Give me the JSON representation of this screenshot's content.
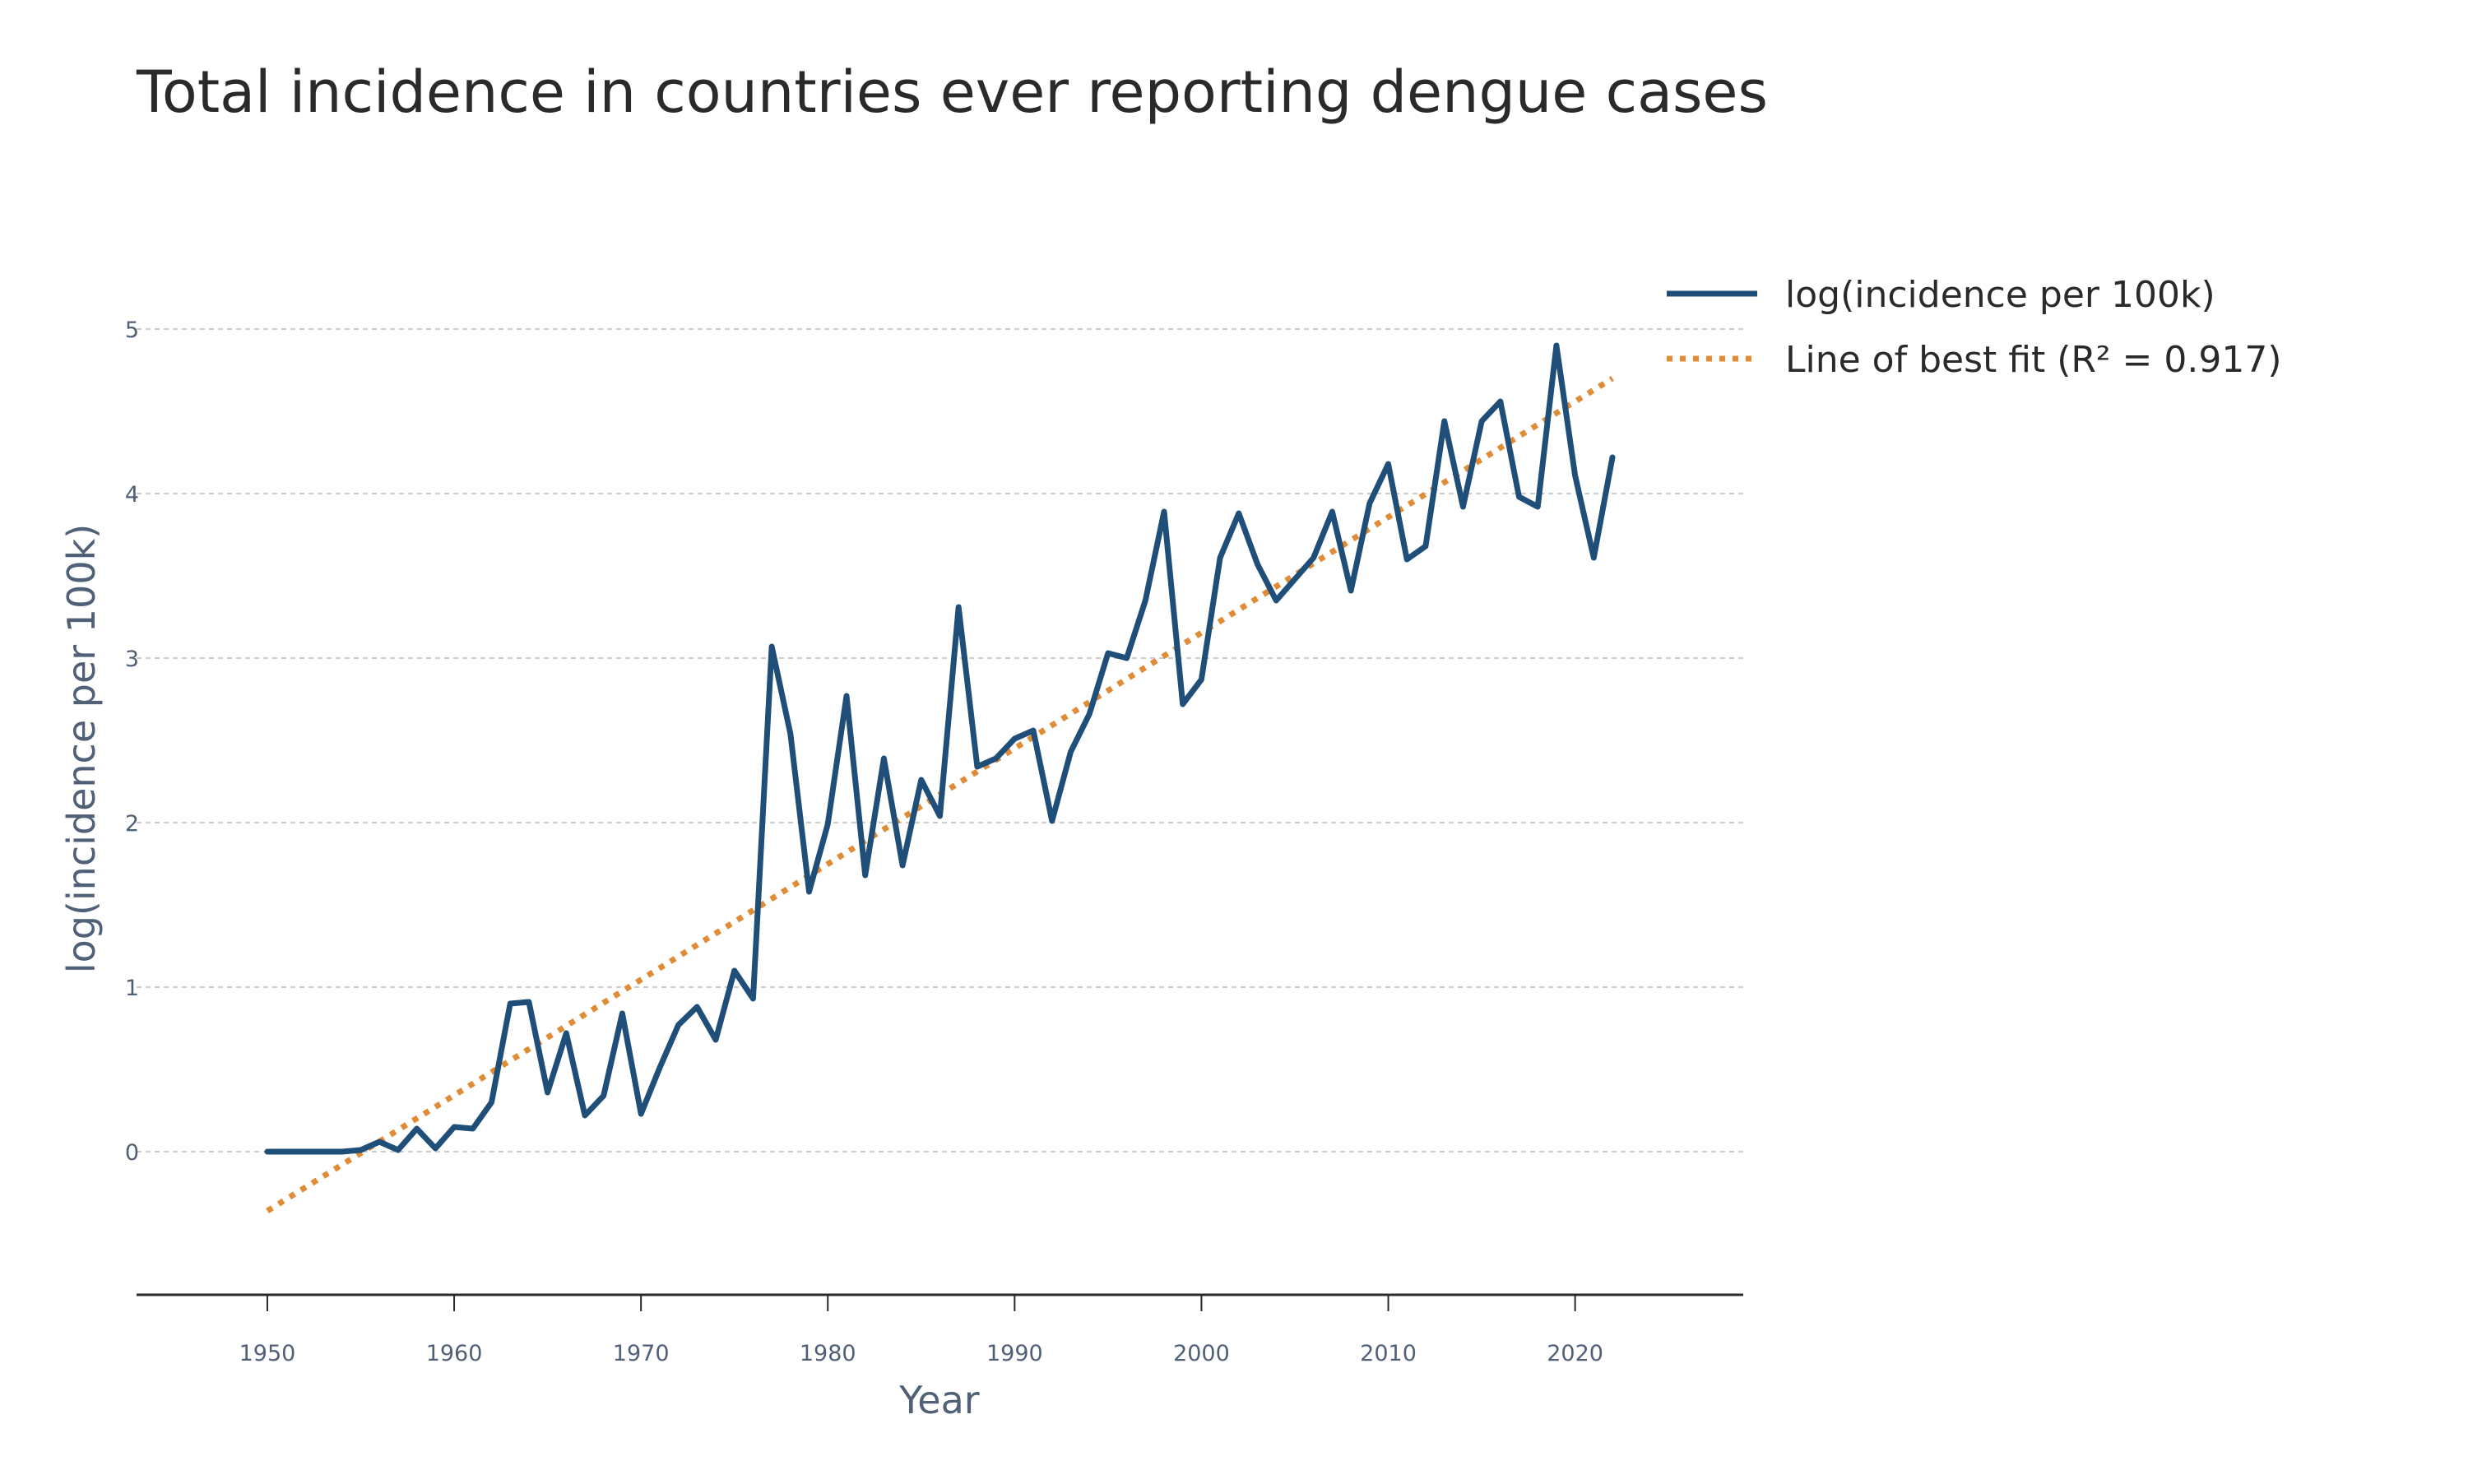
{
  "chart_data": {
    "type": "line",
    "title": "Total incidence in countries ever reporting dengue cases",
    "xlabel": "Year",
    "ylabel": "log(incidence per 100k)",
    "xlim": [
      1943,
      2029
    ],
    "ylim": [
      -0.87,
      5.5
    ],
    "x_ticks": [
      1950,
      1960,
      1970,
      1980,
      1990,
      2000,
      2010,
      2020
    ],
    "y_ticks": [
      0,
      1,
      2,
      3,
      4,
      5
    ],
    "grid": true,
    "legend_position": "right",
    "colors": {
      "series_line": "#1f4e79",
      "fit_line": "#e08b35",
      "grid": "#cccccc",
      "axis": "#2a2a2a"
    },
    "series": [
      {
        "name": "log(incidence per 100k)",
        "style": "solid",
        "x": [
          1950,
          1951,
          1952,
          1953,
          1954,
          1955,
          1956,
          1957,
          1958,
          1959,
          1960,
          1961,
          1962,
          1963,
          1964,
          1965,
          1966,
          1967,
          1968,
          1969,
          1970,
          1971,
          1972,
          1973,
          1974,
          1975,
          1976,
          1977,
          1978,
          1979,
          1980,
          1981,
          1982,
          1983,
          1984,
          1985,
          1986,
          1987,
          1988,
          1989,
          1990,
          1991,
          1992,
          1993,
          1994,
          1995,
          1996,
          1997,
          1998,
          1999,
          2000,
          2001,
          2002,
          2003,
          2004,
          2005,
          2006,
          2007,
          2008,
          2009,
          2010,
          2011,
          2012,
          2013,
          2014,
          2015,
          2016,
          2017,
          2018,
          2019,
          2020,
          2021,
          2022
        ],
        "y": [
          0,
          0,
          0,
          0,
          0,
          0.01,
          0.06,
          0.01,
          0.14,
          0.02,
          0.15,
          0.14,
          0.3,
          0.9,
          0.91,
          0.36,
          0.72,
          0.22,
          0.34,
          0.84,
          0.23,
          0.51,
          0.77,
          0.88,
          0.68,
          1.1,
          0.93,
          3.07,
          2.54,
          1.58,
          1.99,
          2.77,
          1.68,
          2.39,
          1.74,
          2.26,
          2.04,
          3.31,
          2.34,
          2.39,
          2.51,
          2.56,
          2.01,
          2.43,
          2.66,
          3.03,
          3.0,
          3.35,
          3.89,
          2.72,
          2.87,
          3.61,
          3.88,
          3.57,
          3.35,
          3.48,
          3.61,
          3.89,
          3.41,
          3.94,
          4.18,
          3.6,
          3.68,
          4.44,
          3.92,
          4.44,
          4.56,
          3.98,
          3.92,
          4.9,
          4.11,
          3.61,
          4.22
        ]
      },
      {
        "name": "Line of best fit (R² = 0.917)",
        "style": "dotted",
        "x": [
          1950,
          2022
        ],
        "y": [
          -0.36,
          4.7
        ]
      }
    ]
  }
}
